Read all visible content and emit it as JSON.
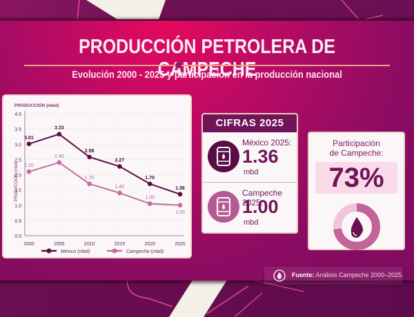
{
  "header": {
    "title": "PRODUCCIÓN PETROLERA DE CAMPECHE",
    "subtitle": "Evolución 2000 - 2025 y participación en la producción nacional"
  },
  "colors": {
    "mexico": "#5a0d45",
    "campeche": "#c46aa0",
    "accent": "#6e1457",
    "highlight_bg": "#f8dae8",
    "rule": "#f0a28c"
  },
  "chart_data": {
    "type": "line",
    "title": "PRODUCCIÓN (mbd)",
    "xlabel": "",
    "ylabel": "PRODUCCIÓN (mbd)",
    "x": [
      "2000",
      "2005",
      "2010",
      "2015",
      "2020",
      "2025"
    ],
    "ylim": [
      0,
      4.0
    ],
    "yticks": [
      "0.0",
      "0.5",
      "1.0",
      "1.5",
      "2.0",
      "2.5",
      "3.0",
      "3.5",
      "4.0"
    ],
    "grid": true,
    "legend_position": "bottom",
    "series": [
      {
        "name": "México (mbd)",
        "values": [
          3.01,
          3.33,
          2.58,
          2.27,
          1.7,
          1.36
        ],
        "labels": [
          "3.01",
          "3.33",
          "2.58",
          "2.27",
          "1.70",
          "1.36"
        ]
      },
      {
        "name": "Campeche (mbd)",
        "values": [
          2.1,
          2.4,
          1.7,
          1.4,
          1.05,
          1.0
        ],
        "labels": [
          "2.10",
          "2.40",
          "1.70",
          "1.40",
          "1.05",
          "1.00"
        ]
      }
    ]
  },
  "cifras": {
    "heading": "CIFRAS 2025",
    "items": [
      {
        "label": "México 2025:",
        "value": "1.36",
        "unit": "mbd",
        "icon": "oil-barrel-icon"
      },
      {
        "label": "Campeche 2025:",
        "value": "1.00",
        "unit": "mbd",
        "icon": "oil-barrel-icon"
      }
    ]
  },
  "participacion": {
    "title_line1": "Participación",
    "title_line2": "de Campeche:",
    "value": "73%",
    "percent": 73,
    "icon": "oil-drop-icon"
  },
  "fuente": {
    "label": "Fuente:",
    "text": "Análisis Campeche 2000–2025.",
    "icon": "oil-drop-icon"
  }
}
